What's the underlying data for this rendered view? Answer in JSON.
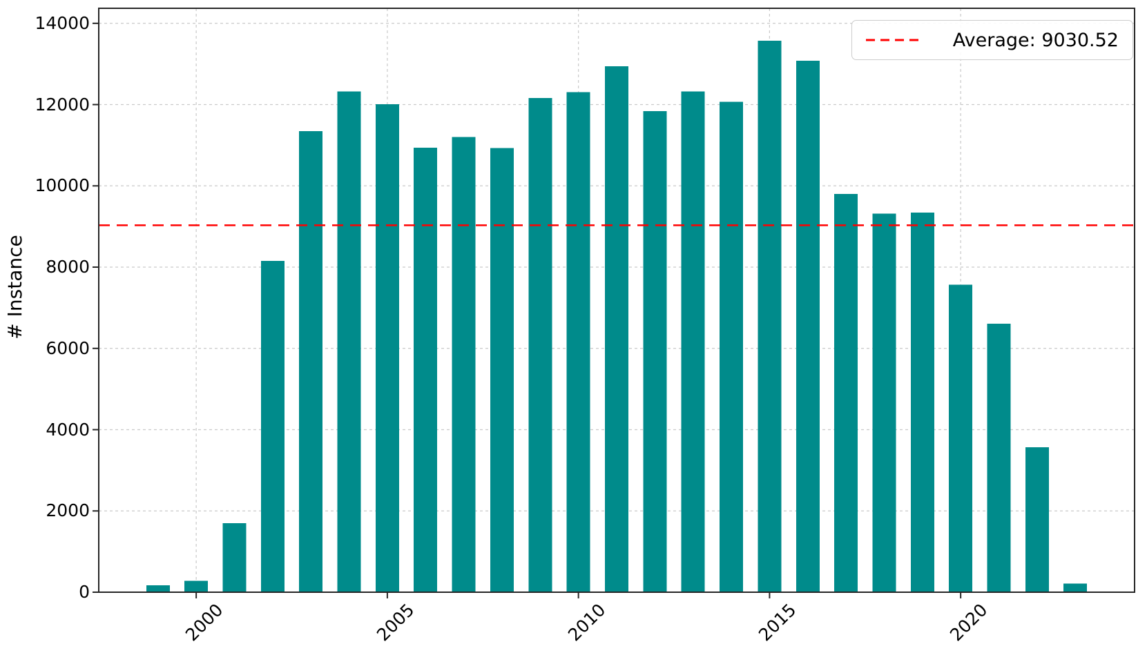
{
  "chart_data": {
    "type": "bar",
    "title": "",
    "xlabel": "",
    "ylabel": "# Instance",
    "categories": [
      1999,
      2000,
      2001,
      2002,
      2003,
      2004,
      2005,
      2006,
      2007,
      2008,
      2009,
      2010,
      2011,
      2012,
      2013,
      2014,
      2015,
      2016,
      2017,
      2018,
      2019,
      2020,
      2021,
      2022,
      2023
    ],
    "values": [
      170,
      280,
      1700,
      8150,
      11350,
      12320,
      12010,
      10940,
      11200,
      10930,
      12160,
      12310,
      12940,
      11840,
      12320,
      12070,
      13570,
      13080,
      9800,
      9320,
      9340,
      7570,
      6610,
      3570,
      210
    ],
    "average": 9030.52,
    "yticks": [
      0,
      2000,
      4000,
      6000,
      8000,
      10000,
      12000,
      14000
    ],
    "xticks": [
      2000,
      2005,
      2010,
      2015,
      2020
    ],
    "xlim": [
      1997.45,
      2024.55
    ],
    "ylim": [
      0,
      14370
    ],
    "grid": true,
    "legend_position": "upper right",
    "bar_color": "#008b8b",
    "average_line_color": "#ff0000",
    "grid_color": "#c9c9c9",
    "spine_color": "#262626"
  },
  "legend": {
    "average_label": "Average: 9030.52"
  }
}
